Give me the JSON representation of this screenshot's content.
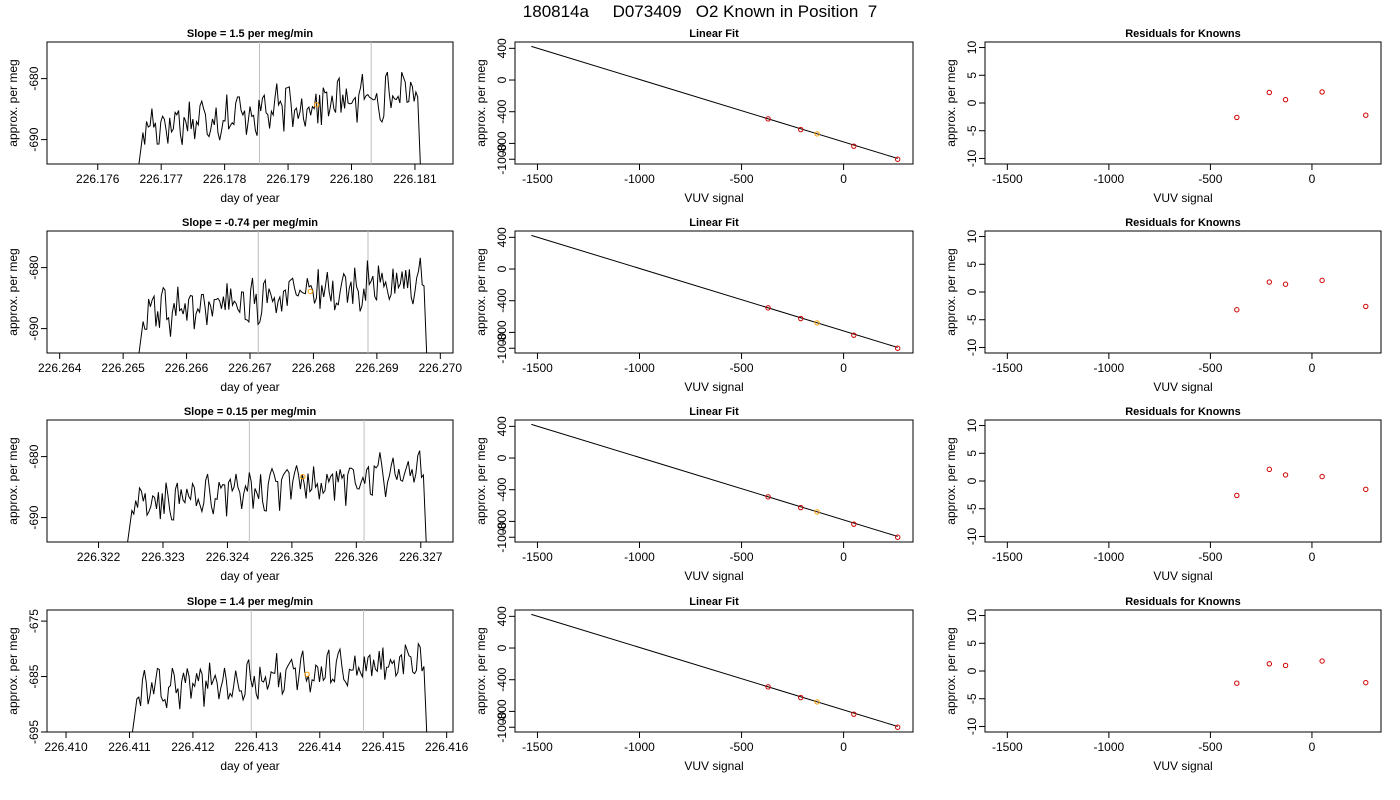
{
  "figure": {
    "title": "180814a     D073409   O2 Known in Position  7"
  },
  "colors": {
    "trace": "#000000",
    "guide_line": "#bebebe",
    "highlight": "#ff9f00",
    "known_point": "#d00000",
    "axis": "#000000"
  },
  "chart_data": [
    {
      "type": "line",
      "row": 1,
      "title": "Slope =  1.5  per meg/min",
      "xlabel": "day of year",
      "ylabel": "approx. per meg",
      "xlim": [
        226.1752,
        226.1816
      ],
      "ylim": [
        -694,
        -674
      ],
      "xticks": [
        "226.176",
        "226.177",
        "226.178",
        "226.179",
        "226.180",
        "226.181"
      ],
      "yticks": [
        "-690",
        "-680"
      ],
      "trace_start": 226.1766,
      "trace_end": 226.1811,
      "vertical_lines": [
        226.17855,
        226.18031
      ],
      "highlight_point": {
        "x": 226.17945,
        "y": -684.3
      }
    },
    {
      "type": "scatter",
      "row": 1,
      "title": "Linear Fit",
      "xlabel": "VUV signal",
      "ylabel": "approx. per meg",
      "xlim": [
        -1610,
        340
      ],
      "ylim": [
        -1060,
        480
      ],
      "xticks": [
        "-1500",
        "-1000",
        "-500",
        "0"
      ],
      "yticks": [
        "-1000",
        "-800",
        "-400",
        "0",
        "400"
      ],
      "fit_line": {
        "x": [
          -1530,
          265
        ],
        "y": [
          425,
          -990
        ]
      },
      "points": [
        {
          "x": -370,
          "y": -490
        },
        {
          "x": -210,
          "y": -625
        },
        {
          "x": -130,
          "y": -680
        },
        {
          "x": 50,
          "y": -835
        },
        {
          "x": 265,
          "y": -1000
        }
      ],
      "highlight_index": 2
    },
    {
      "type": "scatter",
      "row": 1,
      "title": "Residuals for Knowns",
      "xlabel": "VUV signal",
      "ylabel": "approx. per meg",
      "xlim": [
        -1610,
        340
      ],
      "ylim": [
        -11,
        11
      ],
      "xticks": [
        "-1500",
        "-1000",
        "-500",
        "0"
      ],
      "yticks": [
        "-10",
        "-5",
        "0",
        "5",
        "10"
      ],
      "points": [
        {
          "x": -370,
          "y": -2.6
        },
        {
          "x": -210,
          "y": 1.9
        },
        {
          "x": -130,
          "y": 0.6
        },
        {
          "x": 50,
          "y": 2.0
        },
        {
          "x": 265,
          "y": -2.2
        }
      ]
    },
    {
      "type": "line",
      "row": 2,
      "title": "Slope =  -0.74  per meg/min",
      "xlabel": "day of year",
      "ylabel": "approx. per meg",
      "xlim": [
        226.2638,
        226.2702
      ],
      "ylim": [
        -694,
        -674
      ],
      "xticks": [
        "226.264",
        "226.265",
        "226.266",
        "226.267",
        "226.268",
        "226.269",
        "226.270"
      ],
      "yticks": [
        "-690",
        "-680"
      ],
      "trace_start": 226.2652,
      "trace_end": 226.2698,
      "vertical_lines": [
        226.26713,
        226.26886
      ],
      "highlight_point": {
        "x": 226.26795,
        "y": -683.9
      }
    },
    {
      "type": "scatter",
      "row": 2,
      "title": "Linear Fit",
      "xlabel": "VUV signal",
      "ylabel": "approx. per meg",
      "xlim": [
        -1610,
        340
      ],
      "ylim": [
        -1060,
        480
      ],
      "xticks": [
        "-1500",
        "-1000",
        "-500",
        "0"
      ],
      "yticks": [
        "-1000",
        "-800",
        "-400",
        "0",
        "400"
      ],
      "fit_line": {
        "x": [
          -1530,
          265
        ],
        "y": [
          425,
          -990
        ]
      },
      "points": [
        {
          "x": -370,
          "y": -490
        },
        {
          "x": -210,
          "y": -625
        },
        {
          "x": -130,
          "y": -680
        },
        {
          "x": 50,
          "y": -835
        },
        {
          "x": 265,
          "y": -1000
        }
      ],
      "highlight_index": 2
    },
    {
      "type": "scatter",
      "row": 2,
      "title": "Residuals for Knowns",
      "xlabel": "VUV signal",
      "ylabel": "approx. per meg",
      "xlim": [
        -1610,
        340
      ],
      "ylim": [
        -11,
        11
      ],
      "xticks": [
        "-1500",
        "-1000",
        "-500",
        "0"
      ],
      "yticks": [
        "-10",
        "-5",
        "0",
        "5",
        "10"
      ],
      "points": [
        {
          "x": -370,
          "y": -3.2
        },
        {
          "x": -210,
          "y": 1.8
        },
        {
          "x": -130,
          "y": 1.4
        },
        {
          "x": 50,
          "y": 2.1
        },
        {
          "x": 265,
          "y": -2.6
        }
      ]
    },
    {
      "type": "line",
      "row": 3,
      "title": "Slope =  0.15  per meg/min",
      "xlabel": "day of year",
      "ylabel": "approx. per meg",
      "xlim": [
        226.3212,
        226.3275
      ],
      "ylim": [
        -694,
        -674
      ],
      "xticks": [
        "226.322",
        "226.323",
        "226.324",
        "226.325",
        "226.326",
        "226.327"
      ],
      "yticks": [
        "-690",
        "-680"
      ],
      "trace_start": 226.3224,
      "trace_end": 226.3271,
      "vertical_lines": [
        226.32434,
        226.32612
      ],
      "highlight_point": {
        "x": 226.32517,
        "y": -683.3
      }
    },
    {
      "type": "scatter",
      "row": 3,
      "title": "Linear Fit",
      "xlabel": "VUV signal",
      "ylabel": "approx. per meg",
      "xlim": [
        -1610,
        340
      ],
      "ylim": [
        -1060,
        480
      ],
      "xticks": [
        "-1500",
        "-1000",
        "-500",
        "0"
      ],
      "yticks": [
        "-1000",
        "-800",
        "-400",
        "0",
        "400"
      ],
      "fit_line": {
        "x": [
          -1530,
          265
        ],
        "y": [
          425,
          -990
        ]
      },
      "points": [
        {
          "x": -370,
          "y": -490
        },
        {
          "x": -210,
          "y": -625
        },
        {
          "x": -130,
          "y": -680
        },
        {
          "x": 50,
          "y": -835
        },
        {
          "x": 265,
          "y": -1000
        }
      ],
      "highlight_index": 2
    },
    {
      "type": "scatter",
      "row": 3,
      "title": "Residuals for Knowns",
      "xlabel": "VUV signal",
      "ylabel": "approx. per meg",
      "xlim": [
        -1610,
        340
      ],
      "ylim": [
        -11,
        11
      ],
      "xticks": [
        "-1500",
        "-1000",
        "-500",
        "0"
      ],
      "yticks": [
        "-10",
        "-5",
        "0",
        "5",
        "10"
      ],
      "points": [
        {
          "x": -370,
          "y": -2.6
        },
        {
          "x": -210,
          "y": 2.1
        },
        {
          "x": -130,
          "y": 1.1
        },
        {
          "x": 50,
          "y": 0.8
        },
        {
          "x": 265,
          "y": -1.5
        }
      ]
    },
    {
      "type": "line",
      "row": 4,
      "title": "Slope =  1.4  per meg/min",
      "xlabel": "day of year",
      "ylabel": "approx. per meg",
      "xlim": [
        226.4097,
        226.4161
      ],
      "ylim": [
        -695,
        -673
      ],
      "xticks": [
        "226.410",
        "226.411",
        "226.412",
        "226.413",
        "226.414",
        "226.415",
        "226.416"
      ],
      "yticks": [
        "-695",
        "-685",
        "-675"
      ],
      "trace_start": 226.411,
      "trace_end": 226.4157,
      "vertical_lines": [
        226.41292,
        226.41469
      ],
      "highlight_point": {
        "x": 226.4138,
        "y": -684.6
      }
    },
    {
      "type": "scatter",
      "row": 4,
      "title": "Linear Fit",
      "xlabel": "VUV signal",
      "ylabel": "approx. per meg",
      "xlim": [
        -1610,
        340
      ],
      "ylim": [
        -1060,
        480
      ],
      "xticks": [
        "-1500",
        "-1000",
        "-500",
        "0"
      ],
      "yticks": [
        "-1000",
        "-800",
        "-400",
        "0",
        "400"
      ],
      "fit_line": {
        "x": [
          -1530,
          265
        ],
        "y": [
          425,
          -990
        ]
      },
      "points": [
        {
          "x": -370,
          "y": -490
        },
        {
          "x": -210,
          "y": -625
        },
        {
          "x": -130,
          "y": -680
        },
        {
          "x": 50,
          "y": -835
        },
        {
          "x": 265,
          "y": -1000
        }
      ],
      "highlight_index": 2
    },
    {
      "type": "scatter",
      "row": 4,
      "title": "Residuals for Knowns",
      "xlabel": "VUV signal",
      "ylabel": "approx. per meg",
      "xlim": [
        -1610,
        340
      ],
      "ylim": [
        -11,
        11
      ],
      "xticks": [
        "-1500",
        "-1000",
        "-500",
        "0"
      ],
      "yticks": [
        "-10",
        "-5",
        "0",
        "5",
        "10"
      ],
      "points": [
        {
          "x": -370,
          "y": -2.2
        },
        {
          "x": -210,
          "y": 1.3
        },
        {
          "x": -130,
          "y": 1.0
        },
        {
          "x": 50,
          "y": 1.8
        },
        {
          "x": 265,
          "y": -2.1
        }
      ]
    }
  ]
}
